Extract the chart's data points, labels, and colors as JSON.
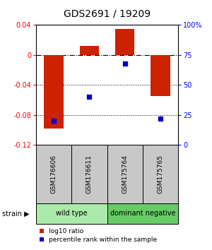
{
  "title": "GDS2691 / 19209",
  "samples": [
    "GSM176606",
    "GSM176611",
    "GSM175764",
    "GSM175765"
  ],
  "log10_ratio": [
    -0.098,
    0.012,
    0.035,
    -0.055
  ],
  "percentile_rank": [
    20,
    40,
    68,
    22
  ],
  "ylim_left": [
    -0.12,
    0.04
  ],
  "ylim_right": [
    0,
    100
  ],
  "yticks_left": [
    0.04,
    0.0,
    -0.04,
    -0.08,
    -0.12
  ],
  "ytick_labels_left": [
    "0.04",
    "0",
    "-0.04",
    "-0.08",
    "-0.12"
  ],
  "yticks_right": [
    100,
    75,
    50,
    25,
    0
  ],
  "ytick_labels_right": [
    "100%",
    "75",
    "50",
    "25",
    "0"
  ],
  "groups": [
    {
      "label": "wild type",
      "color": "#aaeaaa"
    },
    {
      "label": "dominant negative",
      "color": "#66cc66"
    }
  ],
  "bar_color": "#cc2200",
  "dot_color": "#0000cc",
  "bar_width": 0.55,
  "bg_color": "#ffffff",
  "sample_box_color": "#c8c8c8",
  "legend_red_label": "log10 ratio",
  "legend_blue_label": "percentile rank within the sample",
  "strain_label": "strain"
}
